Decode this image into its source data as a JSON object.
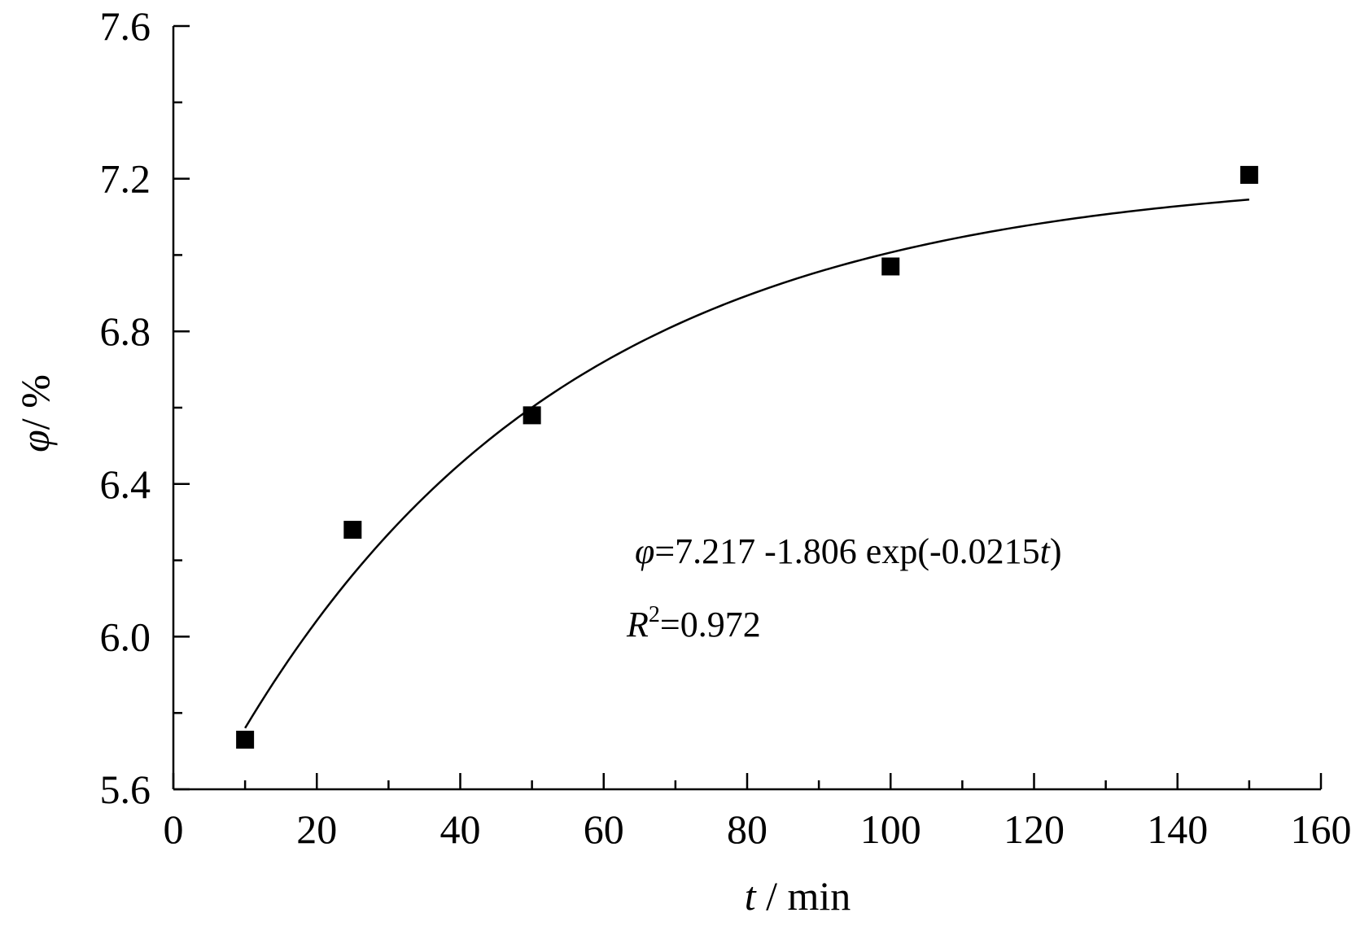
{
  "chart_data": {
    "type": "scatter",
    "xlabel": {
      "var": "t",
      "unit": " / min"
    },
    "ylabel": {
      "var": "φ",
      "unit": "/ %"
    },
    "xlim": [
      0,
      160
    ],
    "ylim": [
      5.6,
      7.6
    ],
    "xticks": [
      0,
      20,
      40,
      60,
      80,
      100,
      120,
      140,
      160
    ],
    "xtick_labels": [
      "0",
      "20",
      "40",
      "60",
      "80",
      "100",
      "120",
      "140",
      "160"
    ],
    "yticks": [
      5.6,
      6.0,
      6.4,
      6.8,
      7.2,
      7.6
    ],
    "ytick_labels": [
      "5.6",
      "6.0",
      "6.4",
      "6.8",
      "7.2",
      "7.6"
    ],
    "grid": false,
    "series": [
      {
        "marker": "square",
        "color": "#000000",
        "x": [
          10,
          25,
          50,
          100,
          150
        ],
        "y": [
          5.73,
          6.28,
          6.58,
          6.97,
          7.21
        ]
      }
    ],
    "fit": {
      "model": "exponential",
      "a": 7.217,
      "b": 1.806,
      "k": 0.0215,
      "x_range": [
        10,
        150
      ],
      "color": "#000000"
    },
    "annotations": {
      "equation": {
        "v1": "φ",
        "text": "=7.217 -1.806 exp(-0.0215",
        "v2": "t",
        "close": ")"
      },
      "r2": {
        "v": "R",
        "sup": "2",
        "text": "=0.972"
      }
    }
  }
}
